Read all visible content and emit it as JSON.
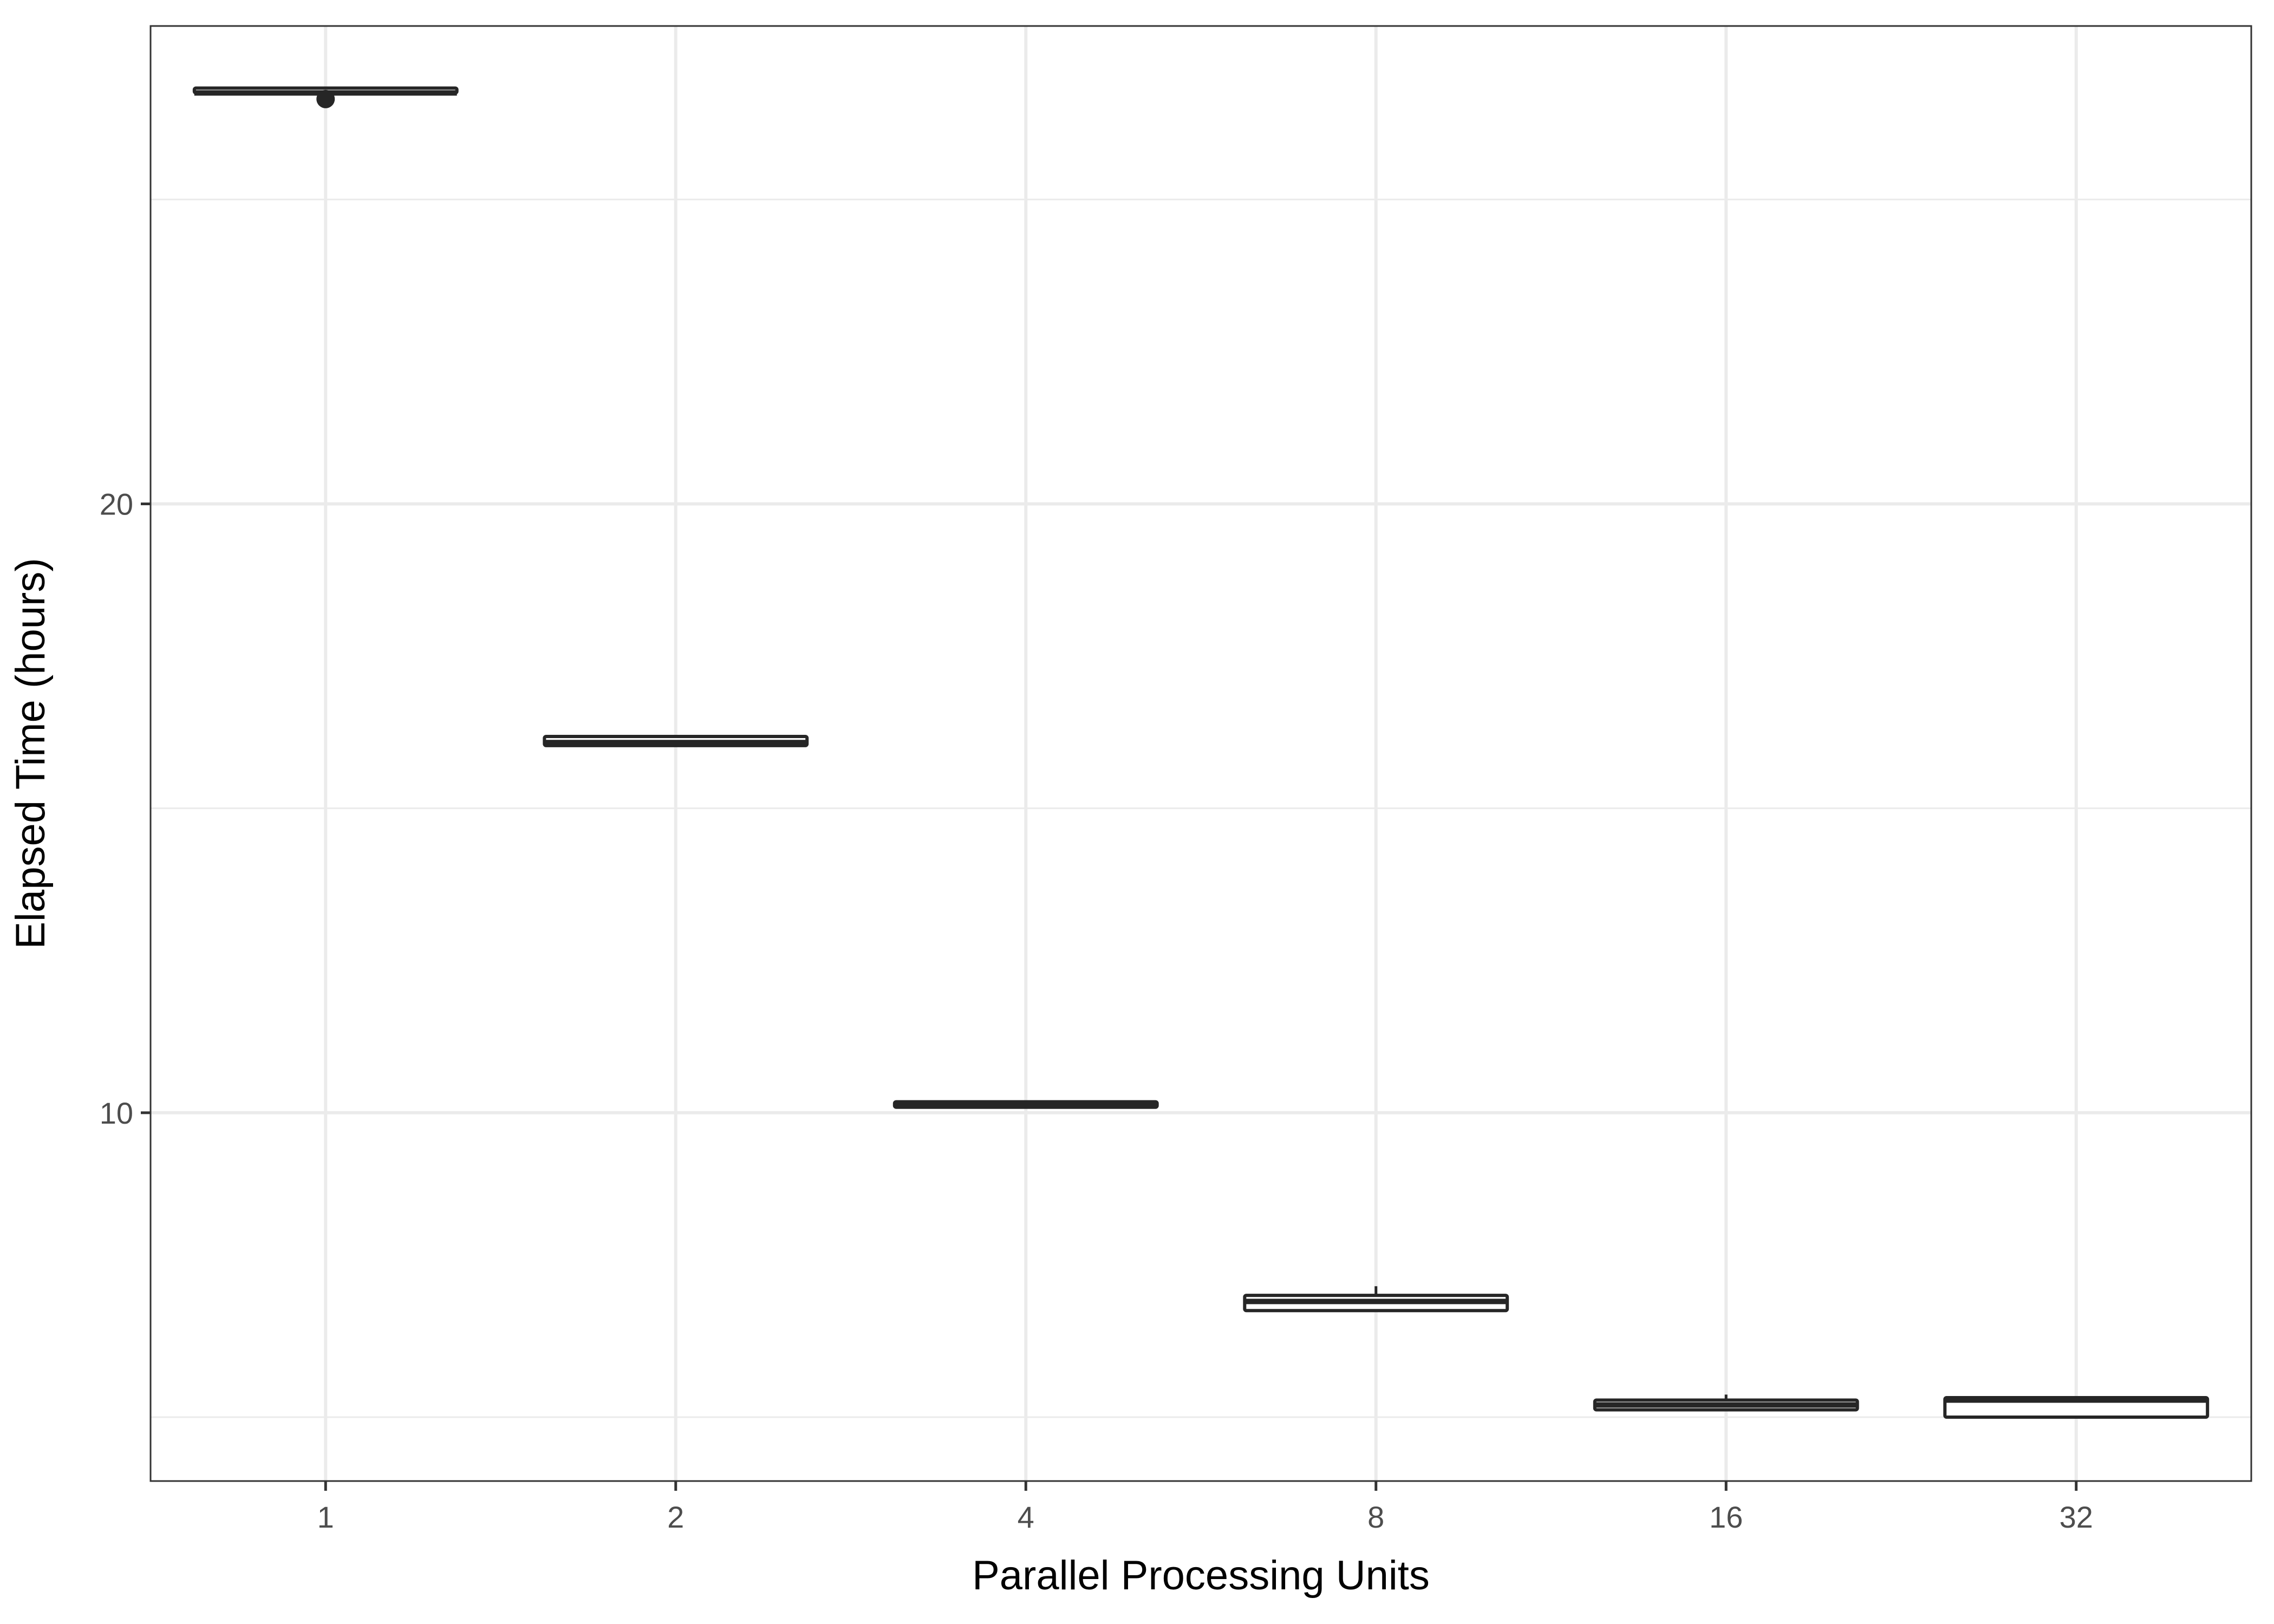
{
  "chart_data": {
    "type": "box",
    "xlabel": "Parallel Processing Units",
    "ylabel": "Elapsed Time (hours)",
    "categories": [
      "1",
      "2",
      "4",
      "8",
      "16",
      "32"
    ],
    "y_ticks": [
      10,
      20
    ],
    "y_minor_gridlines": [
      5,
      15,
      25
    ],
    "ylim": [
      3.95,
      27.85
    ],
    "grid": true,
    "legend": "none",
    "boxes": [
      {
        "category": "1",
        "min": 26.75,
        "q1": 26.75,
        "median": 26.75,
        "q3": 26.83,
        "max": 26.83,
        "outliers": [
          26.65
        ]
      },
      {
        "category": "2",
        "min": 16.03,
        "q1": 16.03,
        "median": 16.08,
        "q3": 16.18,
        "max": 16.18,
        "outliers": []
      },
      {
        "category": "4",
        "min": 10.09,
        "q1": 10.09,
        "median": 10.12,
        "q3": 10.18,
        "max": 10.18,
        "outliers": []
      },
      {
        "category": "8",
        "min": 6.75,
        "q1": 6.75,
        "median": 6.9,
        "q3": 7.0,
        "max": 7.15,
        "outliers": []
      },
      {
        "category": "16",
        "min": 5.12,
        "q1": 5.12,
        "median": 5.2,
        "q3": 5.28,
        "max": 5.37,
        "outliers": []
      },
      {
        "category": "32",
        "min": 5.0,
        "q1": 5.0,
        "median": 5.28,
        "q3": 5.32,
        "max": 5.32,
        "outliers": []
      }
    ],
    "colors": {
      "box_stroke": "#262626",
      "box_fill": "#ffffff",
      "panel_border": "#333333",
      "grid": "#ebebeb",
      "tick_text": "#4d4d4d"
    }
  }
}
